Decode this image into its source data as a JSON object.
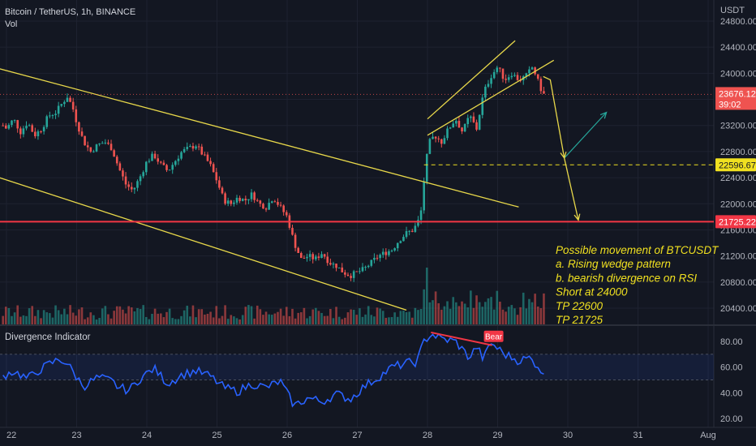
{
  "header": {
    "symbol": "Bitcoin / TetherUS, 1h, BINANCE",
    "vol_label": "Vol",
    "currency": "USDT"
  },
  "indicator": {
    "title": "Divergence Indicator",
    "bear_label": "Bear"
  },
  "price_labels": {
    "last_price": "23676.12",
    "countdown": "39:02",
    "tp1": "22596.67",
    "tp2": "21725.22"
  },
  "annotation": [
    "Possible movement of BTCUSDT",
    "a. Rising wedge pattern",
    "b. bearish divergence on RSI",
    "Short at 24000",
    "TP 22600",
    "TP 21725"
  ],
  "colors": {
    "background": "#131722",
    "up": "#26a69a",
    "down": "#ef5350",
    "trendline": "#e8d84a",
    "support": "#f23645",
    "rsi": "#2962ff",
    "bear_div": "#f23645",
    "projection_up": "#26a69a"
  },
  "chart_data": [
    {
      "type": "candlestick",
      "title": "Bitcoin / TetherUS, 1h, BINANCE",
      "x_ticks": [
        "22",
        "23",
        "24",
        "25",
        "26",
        "27",
        "28",
        "29",
        "30",
        "31",
        "Aug"
      ],
      "y_ticks": [
        20400,
        20800,
        21200,
        21600,
        22000,
        22400,
        22800,
        23200,
        23600,
        24000,
        24400,
        24800
      ],
      "ylim": [
        20300,
        24900
      ],
      "series": [
        {
          "name": "BTCUSDT",
          "close": [
            [
              21.95,
              23200
            ],
            [
              22.0,
              23150
            ],
            [
              22.1,
              23300
            ],
            [
              22.2,
              23100
            ],
            [
              22.3,
              23250
            ],
            [
              22.4,
              23050
            ],
            [
              22.5,
              23150
            ],
            [
              22.6,
              23350
            ],
            [
              22.7,
              23400
            ],
            [
              22.8,
              23550
            ],
            [
              22.87,
              23650
            ],
            [
              22.95,
              23450
            ],
            [
              23.0,
              23250
            ],
            [
              23.1,
              22950
            ],
            [
              23.2,
              22800
            ],
            [
              23.3,
              22900
            ],
            [
              23.4,
              22950
            ],
            [
              23.5,
              22850
            ],
            [
              23.6,
              22550
            ],
            [
              23.7,
              22300
            ],
            [
              23.8,
              22200
            ],
            [
              23.9,
              22400
            ],
            [
              24.0,
              22650
            ],
            [
              24.1,
              22750
            ],
            [
              24.2,
              22600
            ],
            [
              24.3,
              22500
            ],
            [
              24.4,
              22650
            ],
            [
              24.5,
              22800
            ],
            [
              24.6,
              22850
            ],
            [
              24.7,
              22900
            ],
            [
              24.8,
              22750
            ],
            [
              24.9,
              22600
            ],
            [
              25.0,
              22350
            ],
            [
              25.1,
              22050
            ],
            [
              25.2,
              22000
            ],
            [
              25.3,
              22100
            ],
            [
              25.4,
              22050
            ],
            [
              25.5,
              22150
            ],
            [
              25.6,
              22000
            ],
            [
              25.7,
              21950
            ],
            [
              25.8,
              22100
            ],
            [
              25.9,
              21950
            ],
            [
              26.0,
              21800
            ],
            [
              26.1,
              21400
            ],
            [
              26.2,
              21150
            ],
            [
              26.3,
              21200
            ],
            [
              26.4,
              21150
            ],
            [
              26.5,
              21250
            ],
            [
              26.6,
              21100
            ],
            [
              26.7,
              21050
            ],
            [
              26.8,
              20950
            ],
            [
              26.9,
              20900
            ],
            [
              27.0,
              20950
            ],
            [
              27.1,
              21000
            ],
            [
              27.2,
              21100
            ],
            [
              27.3,
              21200
            ],
            [
              27.4,
              21250
            ],
            [
              27.5,
              21300
            ],
            [
              27.6,
              21450
            ],
            [
              27.7,
              21550
            ],
            [
              27.8,
              21600
            ],
            [
              27.9,
              21800
            ],
            [
              28.0,
              22900
            ],
            [
              28.1,
              23050
            ],
            [
              28.2,
              22950
            ],
            [
              28.3,
              23150
            ],
            [
              28.4,
              23300
            ],
            [
              28.5,
              23100
            ],
            [
              28.6,
              23350
            ],
            [
              28.7,
              23150
            ],
            [
              28.8,
              23700
            ],
            [
              28.9,
              23950
            ],
            [
              29.0,
              24100
            ],
            [
              29.1,
              23900
            ],
            [
              29.2,
              24000
            ],
            [
              29.3,
              23900
            ],
            [
              29.4,
              23950
            ],
            [
              29.5,
              24100
            ],
            [
              29.6,
              23800
            ],
            [
              29.65,
              23676
            ]
          ]
        },
        {
          "name": "Vol",
          "values": "relative volume histogram"
        }
      ],
      "trendlines": [
        {
          "name": "channel-top",
          "from": [
            21.9,
            24070
          ],
          "to": [
            29.3,
            21950
          ]
        },
        {
          "name": "channel-bottom",
          "from": [
            21.9,
            22400
          ],
          "to": [
            27.7,
            20370
          ]
        },
        {
          "name": "wedge-top",
          "from": [
            28.0,
            23300
          ],
          "to": [
            29.25,
            24500
          ]
        },
        {
          "name": "wedge-bottom",
          "from": [
            28.0,
            23050
          ],
          "to": [
            29.8,
            24200
          ]
        }
      ],
      "horizontal_levels": [
        {
          "value": 22596.67,
          "style": "dashed"
        },
        {
          "value": 21725.22,
          "style": "solid"
        },
        {
          "value": 23676.12,
          "style": "dotted"
        }
      ],
      "projection": [
        [
          29.65,
          23950
        ],
        [
          29.75,
          23900
        ],
        [
          29.95,
          22700
        ],
        [
          30.55,
          23400
        ],
        [
          29.95,
          22700
        ],
        [
          29.85,
          22900
        ],
        [
          30.15,
          21750
        ]
      ]
    },
    {
      "type": "line",
      "title": "Divergence Indicator",
      "y_ticks": [
        20,
        40,
        60,
        80
      ],
      "ylim": [
        17,
        90
      ],
      "band": [
        50,
        70
      ],
      "series": [
        {
          "name": "RSI",
          "points": [
            [
              21.95,
              53
            ],
            [
              22.1,
              57
            ],
            [
              22.3,
              51
            ],
            [
              22.45,
              57
            ],
            [
              22.6,
              62
            ],
            [
              22.75,
              66
            ],
            [
              22.85,
              64
            ],
            [
              23.0,
              52
            ],
            [
              23.1,
              45
            ],
            [
              23.3,
              52
            ],
            [
              23.5,
              49
            ],
            [
              23.6,
              44
            ],
            [
              23.75,
              42
            ],
            [
              23.9,
              51
            ],
            [
              24.1,
              59
            ],
            [
              24.3,
              47
            ],
            [
              24.5,
              54
            ],
            [
              24.7,
              57
            ],
            [
              24.9,
              53
            ],
            [
              25.1,
              44
            ],
            [
              25.3,
              41
            ],
            [
              25.5,
              47
            ],
            [
              25.7,
              44
            ],
            [
              25.9,
              49
            ],
            [
              26.1,
              30
            ],
            [
              26.3,
              36
            ],
            [
              26.5,
              33
            ],
            [
              26.7,
              39
            ],
            [
              26.9,
              35
            ],
            [
              27.1,
              45
            ],
            [
              27.3,
              52
            ],
            [
              27.5,
              60
            ],
            [
              27.7,
              63
            ],
            [
              27.85,
              64
            ],
            [
              27.95,
              80
            ],
            [
              28.05,
              86
            ],
            [
              28.2,
              82
            ],
            [
              28.4,
              80
            ],
            [
              28.6,
              67
            ],
            [
              28.7,
              76
            ],
            [
              28.8,
              66
            ],
            [
              28.9,
              79
            ],
            [
              29.1,
              70
            ],
            [
              29.3,
              65
            ],
            [
              29.45,
              67
            ],
            [
              29.6,
              60
            ],
            [
              29.66,
              52
            ]
          ]
        }
      ],
      "divergence": {
        "label": "Bear",
        "from": [
          28.05,
          87
        ],
        "to": [
          28.92,
          77
        ]
      }
    }
  ]
}
